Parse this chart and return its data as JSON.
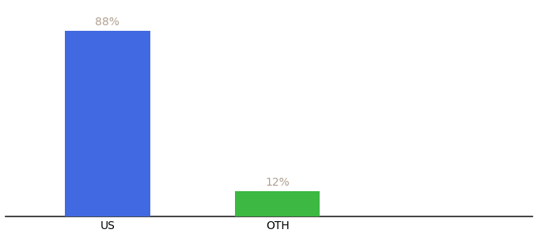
{
  "categories": [
    "US",
    "OTH"
  ],
  "values": [
    88,
    12
  ],
  "bar_colors": [
    "#4169E1",
    "#3CB843"
  ],
  "label_color": "#b0a090",
  "background_color": "#ffffff",
  "bar_width": 0.5,
  "ylim": [
    0,
    100
  ],
  "annotations": [
    "88%",
    "12%"
  ],
  "annotation_fontsize": 10,
  "tick_fontsize": 10,
  "spine_color": "#222222",
  "x_positions": [
    0,
    1
  ],
  "xlim": [
    -0.6,
    2.5
  ]
}
